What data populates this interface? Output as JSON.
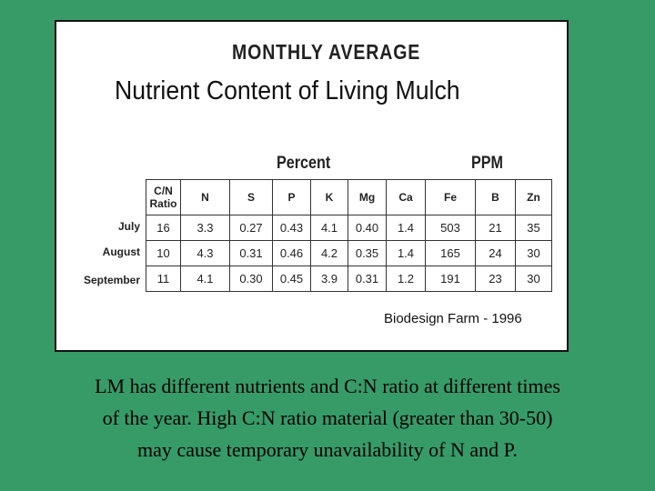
{
  "slide": {
    "figure": {
      "subtitle": "MONTHLY AVERAGE",
      "title": "Nutrient Content of Living Mulch",
      "groups": [
        "Percent",
        "PPM"
      ],
      "table": {
        "header": [
          "C/N Ratio",
          "N",
          "S",
          "P",
          "K",
          "Mg",
          "Ca",
          "Fe",
          "B",
          "Zn"
        ],
        "row_labels": [
          "July",
          "August",
          "September"
        ],
        "rows": [
          [
            "16",
            "3.3",
            "0.27",
            "0.43",
            "4.1",
            "0.40",
            "1.4",
            "503",
            "21",
            "35"
          ],
          [
            "10",
            "4.3",
            "0.31",
            "0.46",
            "4.2",
            "0.35",
            "1.4",
            "165",
            "24",
            "30"
          ],
          [
            "11",
            "4.1",
            "0.30",
            "0.45",
            "3.9",
            "0.31",
            "1.2",
            "191",
            "23",
            "30"
          ]
        ]
      },
      "source": "Biodesign Farm  -  1996"
    },
    "caption": [
      "LM has different nutrients and C:N ratio at different times",
      "of the year.  High C:N ratio material (greater than 30-50)",
      "may cause temporary unavailability of  N and P."
    ]
  }
}
